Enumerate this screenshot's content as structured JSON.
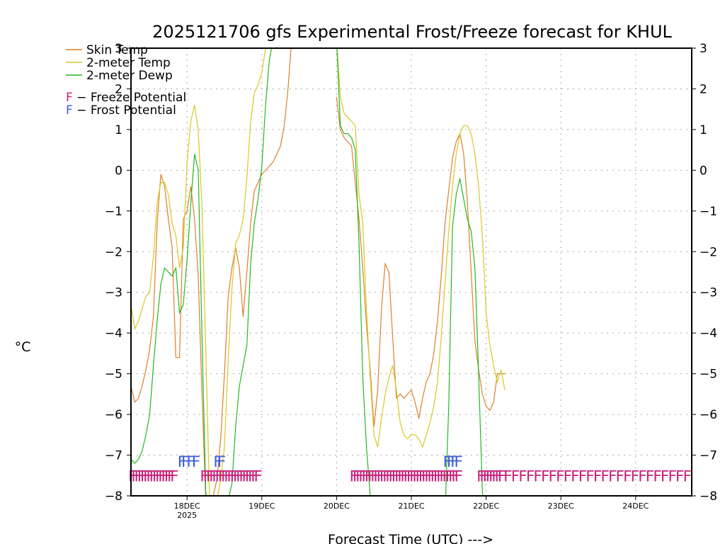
{
  "chart_data": {
    "type": "line",
    "title": "2025121706 gfs Experimental Frost/Freeze forecast for KHUL",
    "xlabel": "Forecast Time (UTC) --->",
    "ylabel": "°C",
    "ylim": [
      -8,
      3
    ],
    "xlim": [
      17.25,
      24.75
    ],
    "yticks": [
      -8,
      -7,
      -6,
      -5,
      -4,
      -3,
      -2,
      -1,
      0,
      1,
      2,
      3
    ],
    "yticks_right": [
      -8,
      -7,
      -6,
      -5,
      -4,
      -3,
      -2,
      -1,
      0,
      1,
      2,
      3
    ],
    "xticks": [
      {
        "x": 18,
        "label": "18DEC",
        "sub": "2025"
      },
      {
        "x": 19,
        "label": "19DEC"
      },
      {
        "x": 20,
        "label": "20DEC"
      },
      {
        "x": 21,
        "label": "21DEC"
      },
      {
        "x": 22,
        "label": "22DEC"
      },
      {
        "x": 23,
        "label": "23DEC"
      },
      {
        "x": 24,
        "label": "24DEC"
      }
    ],
    "grid": true,
    "legend": {
      "placement": "top-left",
      "entries": [
        {
          "name": "Skin Temp",
          "color": "#e07f2a"
        },
        {
          "name": "2-meter Temp",
          "color": "#d8c828"
        },
        {
          "name": "2-meter Dewp",
          "color": "#22b822"
        }
      ],
      "potentials": [
        {
          "symbol": "F",
          "text": " - Freeze Potential",
          "symbol_color": "#c8207a",
          "text_color": "#000000"
        },
        {
          "symbol": "F",
          "text": " - Frost Potential",
          "symbol_color": "#3c5cd8",
          "text_color": "#000000"
        }
      ]
    },
    "series": [
      {
        "name": "Skin Temp",
        "color": "#e07f2a",
        "x": [
          17.25,
          17.3,
          17.35,
          17.4,
          17.45,
          17.5,
          17.55,
          17.6,
          17.65,
          17.7,
          17.75,
          17.8,
          17.85,
          17.9,
          17.95,
          18.0,
          18.05,
          18.1,
          18.15,
          18.2,
          18.25,
          18.3,
          18.35,
          18.4,
          18.45,
          18.5,
          18.55,
          18.6,
          18.65,
          18.7,
          18.75,
          18.8,
          18.85,
          18.9,
          18.95,
          19.0,
          19.05,
          19.1,
          19.15,
          19.2,
          19.25,
          19.3,
          19.35,
          19.4,
          19.45,
          19.5,
          19.55,
          19.6,
          20.0,
          20.05,
          20.1,
          20.15,
          20.2,
          20.25,
          20.3,
          20.35,
          20.4,
          20.45,
          20.5,
          20.55,
          20.6,
          20.65,
          20.7,
          20.75,
          20.8,
          20.85,
          20.9,
          20.95,
          21.0,
          21.05,
          21.1,
          21.15,
          21.2,
          21.25,
          21.3,
          21.35,
          21.4,
          21.45,
          21.5,
          21.55,
          21.6,
          21.65,
          21.7,
          21.75,
          21.8,
          21.85,
          21.9,
          21.95,
          22.0,
          22.05,
          22.1,
          22.15,
          22.2,
          22.25
        ],
        "values": [
          -5.3,
          -5.7,
          -5.6,
          -5.3,
          -4.9,
          -4.4,
          -3.6,
          -1.3,
          -0.1,
          -0.4,
          -1.2,
          -1.9,
          -4.6,
          -4.6,
          -1.2,
          -1.0,
          -0.4,
          -1.2,
          -2.6,
          -5.5,
          -8.1,
          -8.3,
          -8.0,
          -7.6,
          -6.6,
          -5.0,
          -3.1,
          -2.4,
          -1.9,
          -2.4,
          -3.6,
          -2.5,
          -1.3,
          -0.5,
          -0.3,
          -0.1,
          0.0,
          0.1,
          0.2,
          0.4,
          0.6,
          1.1,
          2.0,
          3.2,
          3.2,
          3.2,
          3.2,
          3.2,
          1.8,
          1.0,
          0.8,
          0.7,
          0.6,
          -0.3,
          -1.2,
          -2.4,
          -3.8,
          -4.9,
          -6.3,
          -5.4,
          -3.4,
          -2.3,
          -2.5,
          -4.1,
          -5.6,
          -5.5,
          -5.6,
          -5.5,
          -5.4,
          -5.7,
          -6.1,
          -5.6,
          -5.2,
          -5.0,
          -4.5,
          -3.7,
          -2.6,
          -1.3,
          -0.5,
          0.3,
          0.7,
          0.9,
          0.4,
          -0.8,
          -2.5,
          -4.2,
          -4.9,
          -5.5,
          -5.8,
          -5.9,
          -5.7,
          -5.0,
          -5.0,
          -5.0
        ]
      },
      {
        "name": "2-meter Temp",
        "color": "#d8c828",
        "x": [
          17.25,
          17.3,
          17.35,
          17.4,
          17.45,
          17.5,
          17.55,
          17.6,
          17.65,
          17.7,
          17.75,
          17.8,
          17.85,
          17.9,
          17.95,
          18.0,
          18.05,
          18.1,
          18.15,
          18.2,
          18.25,
          18.3,
          18.35,
          18.4,
          18.45,
          18.5,
          18.55,
          18.6,
          18.65,
          18.7,
          18.75,
          18.8,
          18.85,
          18.9,
          18.95,
          19.0,
          19.05,
          19.1,
          19.15,
          19.2,
          19.25,
          19.3,
          20.0,
          20.05,
          20.1,
          20.15,
          20.2,
          20.25,
          20.3,
          20.35,
          20.4,
          20.45,
          20.5,
          20.55,
          20.6,
          20.65,
          20.7,
          20.75,
          20.8,
          20.85,
          20.9,
          20.95,
          21.0,
          21.05,
          21.1,
          21.15,
          21.2,
          21.25,
          21.3,
          21.35,
          21.4,
          21.45,
          21.5,
          21.55,
          21.6,
          21.65,
          21.7,
          21.75,
          21.8,
          21.85,
          21.9,
          21.95,
          22.0,
          22.05,
          22.1,
          22.15,
          22.2,
          22.25
        ],
        "values": [
          -3.3,
          -3.9,
          -3.7,
          -3.4,
          -3.1,
          -3.0,
          -2.1,
          -0.8,
          -0.3,
          -0.3,
          -0.6,
          -1.3,
          -1.6,
          -2.4,
          -1.9,
          0.2,
          1.2,
          1.6,
          1.0,
          -0.9,
          -4.4,
          -8.0,
          -8.2,
          -8.1,
          -7.6,
          -6.8,
          -4.7,
          -2.9,
          -1.8,
          -1.6,
          -1.2,
          -0.2,
          1.2,
          1.9,
          2.1,
          2.4,
          3.0,
          3.2,
          3.2,
          3.2,
          3.2,
          3.2,
          3.2,
          1.8,
          1.4,
          1.3,
          1.2,
          1.1,
          -0.6,
          -1.3,
          -3.4,
          -5.1,
          -6.5,
          -6.8,
          -6.1,
          -5.5,
          -5.1,
          -4.8,
          -5.4,
          -6.2,
          -6.5,
          -6.6,
          -6.5,
          -6.5,
          -6.6,
          -6.8,
          -6.5,
          -6.2,
          -5.8,
          -5.2,
          -4.1,
          -2.8,
          -1.5,
          -0.4,
          0.4,
          0.9,
          1.1,
          1.1,
          0.9,
          0.4,
          -0.4,
          -1.6,
          -3.5,
          -4.3,
          -4.8,
          -5.2,
          -4.9,
          -5.4
        ]
      },
      {
        "name": "2-meter Dewp",
        "color": "#22b822",
        "x": [
          17.25,
          17.3,
          17.35,
          17.4,
          17.45,
          17.5,
          17.55,
          17.6,
          17.65,
          17.7,
          17.75,
          17.8,
          17.85,
          17.9,
          17.95,
          18.0,
          18.05,
          18.1,
          18.15,
          18.2,
          18.25,
          18.3,
          18.35,
          18.4,
          18.45,
          18.5,
          18.55,
          18.6,
          18.65,
          18.7,
          18.75,
          18.8,
          18.85,
          18.9,
          18.95,
          19.0,
          19.05,
          19.1,
          19.15,
          19.2,
          19.25,
          19.3,
          20.0,
          20.05,
          20.1,
          20.15,
          20.2,
          20.25,
          20.3,
          20.35,
          20.4,
          20.45,
          20.5,
          21.45,
          21.5,
          21.55,
          21.6,
          21.65,
          21.7,
          21.75,
          21.8,
          21.85,
          21.9,
          21.95,
          22.0,
          22.05,
          22.1,
          22.15,
          22.2,
          22.25
        ],
        "values": [
          -7.1,
          -7.2,
          -7.1,
          -6.9,
          -6.5,
          -6.0,
          -4.8,
          -3.7,
          -2.8,
          -2.4,
          -2.5,
          -2.6,
          -2.4,
          -3.5,
          -3.3,
          -2.2,
          -0.8,
          0.4,
          0.0,
          -4.1,
          -7.9,
          -8.5,
          -8.4,
          -8.3,
          -8.2,
          -8.2,
          -8.1,
          -7.7,
          -6.3,
          -5.3,
          -4.8,
          -4.3,
          -2.3,
          -1.3,
          -0.7,
          0.1,
          1.6,
          2.7,
          3.2,
          3.2,
          3.2,
          3.2,
          3.2,
          1.1,
          0.9,
          0.9,
          0.8,
          0.5,
          -1.8,
          -5.1,
          -6.8,
          -8.0,
          -8.5,
          -8.5,
          -5.8,
          -1.4,
          -0.6,
          -0.2,
          -0.7,
          -1.2,
          -1.5,
          -2.4,
          -5.0,
          -7.9,
          -8.5,
          -8.5,
          -8.5,
          -8.5,
          -8.5,
          -8.5
        ]
      }
    ],
    "freeze_potential": {
      "symbol": "F",
      "color": "#c8207a",
      "level": -7.5,
      "x": [
        17.27,
        17.31,
        17.35,
        17.39,
        17.43,
        17.47,
        17.51,
        17.55,
        17.59,
        17.63,
        17.67,
        17.71,
        17.75,
        17.79,
        17.83,
        18.23,
        18.27,
        18.31,
        18.35,
        18.39,
        18.43,
        18.47,
        18.51,
        18.55,
        18.59,
        18.63,
        18.67,
        18.71,
        18.75,
        18.79,
        18.83,
        18.87,
        18.91,
        18.95,
        20.23,
        20.27,
        20.31,
        20.35,
        20.39,
        20.43,
        20.47,
        20.51,
        20.55,
        20.59,
        20.63,
        20.67,
        20.71,
        20.75,
        20.79,
        20.83,
        20.87,
        20.91,
        20.95,
        20.99,
        21.03,
        21.07,
        21.11,
        21.15,
        21.19,
        21.23,
        21.27,
        21.31,
        21.35,
        21.39,
        21.43,
        21.47,
        21.51,
        21.55,
        21.59,
        21.63,
        21.93,
        21.97,
        22.01,
        22.05,
        22.09,
        22.13,
        22.17,
        22.21,
        22.29,
        22.39,
        22.49,
        22.59,
        22.69,
        22.79,
        22.89,
        22.99,
        23.09,
        23.19,
        23.29,
        23.39,
        23.49,
        23.59,
        23.69,
        23.79,
        23.89,
        23.99,
        24.09,
        24.19,
        24.29,
        24.39,
        24.49,
        24.59,
        24.69
      ]
    },
    "frost_potential": {
      "symbol": "F",
      "color": "#3c5cd8",
      "level": -7.15,
      "x": [
        17.93,
        17.98,
        18.05,
        18.12,
        18.41,
        18.46,
        21.48,
        21.53,
        21.58,
        21.63
      ]
    }
  }
}
